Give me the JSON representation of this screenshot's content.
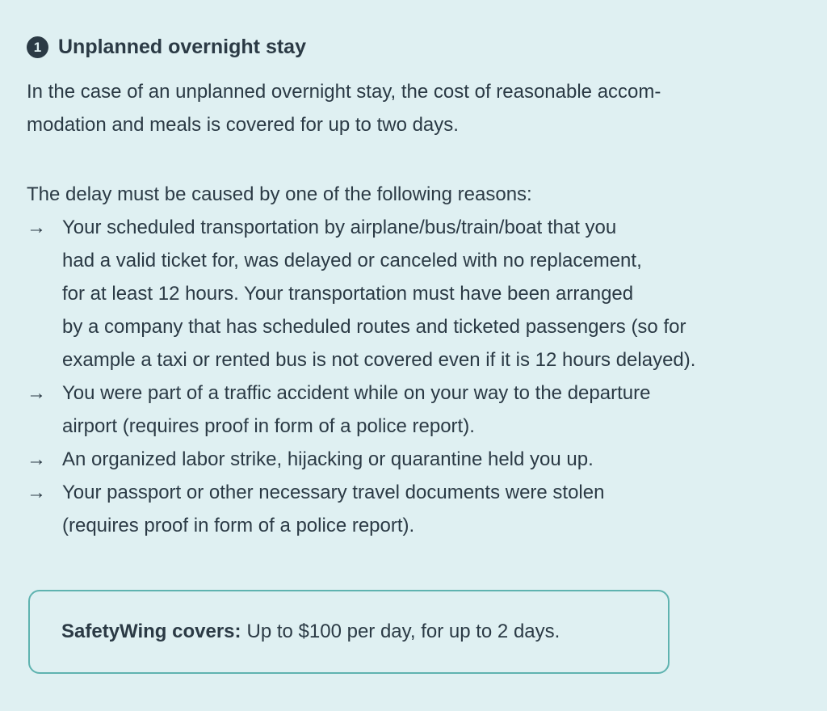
{
  "section": {
    "number": "1",
    "title": "Unplanned overnight stay"
  },
  "intro_lines": [
    "In the case of an unplanned overnight stay, the cost of reasonable accom-",
    "modation and meals is covered for up to two days."
  ],
  "reasons_intro": "The delay must be caused by one of the following reasons:",
  "arrow_glyph": "→",
  "reasons": [
    {
      "lines": [
        "Your scheduled transportation by airplane/bus/train/boat that you",
        "had a valid ticket for, was delayed or canceled with no replacement,",
        "for at least 12 hours. Your transportation must have been arranged",
        "by a company that has scheduled routes and ticketed passengers (so for",
        "example a taxi or rented bus is not covered even if it is 12 hours delayed)."
      ]
    },
    {
      "lines": [
        "You were part of a traffic accident while on your way to the departure",
        "airport (requires proof in form of a police report)."
      ]
    },
    {
      "lines": [
        "An organized labor strike, hijacking or quarantine held you up."
      ]
    },
    {
      "lines": [
        "Your passport or other necessary travel documents were stolen",
        "(requires proof in form of a police report)."
      ]
    }
  ],
  "coverage": {
    "label": "SafetyWing covers:",
    "value": "Up to $100 per day, for up to 2 days."
  },
  "colors": {
    "background": "#dff0f2",
    "text": "#2b3a45",
    "box_border": "#5fb3b0"
  }
}
